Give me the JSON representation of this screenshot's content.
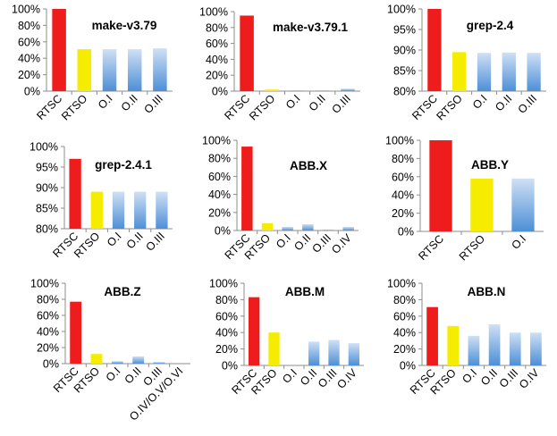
{
  "chart_data": [
    {
      "type": "bar",
      "title": "make-v3.79",
      "categories": [
        "RTSC",
        "RTSO",
        "O.I",
        "O.II",
        "O.III"
      ],
      "values": [
        100,
        51,
        51,
        51,
        52
      ],
      "ylim": [
        0,
        100
      ],
      "yticks": [
        "0%",
        "20%",
        "40%",
        "60%",
        "80%",
        "100%"
      ],
      "grid": false
    },
    {
      "type": "bar",
      "title": "make-v3.79.1",
      "categories": [
        "RTSC",
        "RTSO",
        "O.I",
        "O.II",
        "O.III"
      ],
      "values": [
        95,
        2,
        1,
        1,
        3
      ],
      "ylim": [
        0,
        100
      ],
      "yticks": [
        "0%",
        "20%",
        "40%",
        "60%",
        "80%",
        "100%"
      ],
      "grid": false
    },
    {
      "type": "bar",
      "title": "grep-2.4",
      "categories": [
        "RTSC",
        "RTSO",
        "O.I",
        "O.II",
        "O.III"
      ],
      "values": [
        100,
        89.5,
        89.3,
        89.4,
        89.3
      ],
      "ylim": [
        80,
        100
      ],
      "yticks": [
        "80%",
        "85%",
        "90%",
        "95%",
        "100%"
      ],
      "grid": false
    },
    {
      "type": "bar",
      "title": "grep-2.4.1",
      "categories": [
        "RTSC",
        "RTSO",
        "O.I",
        "O.II",
        "O.III"
      ],
      "values": [
        97,
        89,
        89,
        89,
        89
      ],
      "ylim": [
        80,
        100
      ],
      "yticks": [
        "80%",
        "85%",
        "90%",
        "95%",
        "100%"
      ],
      "grid": false
    },
    {
      "type": "bar",
      "title": "ABB.X",
      "categories": [
        "RTSC",
        "RTSO",
        "O.I",
        "O.II",
        "O.III",
        "O.IV"
      ],
      "values": [
        93,
        8,
        4,
        7,
        1,
        4
      ],
      "ylim": [
        0,
        100
      ],
      "yticks": [
        "0%",
        "20%",
        "40%",
        "60%",
        "80%",
        "100%"
      ],
      "grid": false
    },
    {
      "type": "bar",
      "title": "ABB.Y",
      "categories": [
        "RTSC",
        "RTSO",
        "O.I"
      ],
      "values": [
        100,
        58,
        58
      ],
      "ylim": [
        0,
        100
      ],
      "yticks": [
        "0%",
        "20%",
        "40%",
        "60%",
        "80%",
        "100%"
      ],
      "grid": false
    },
    {
      "type": "bar",
      "title": "ABB.Z",
      "categories": [
        "RTSC",
        "RTSO",
        "O.I",
        "O.II",
        "O.III",
        "O.IV/O.V/O.VI"
      ],
      "values": [
        77,
        12,
        3,
        9,
        2,
        0
      ],
      "ylim": [
        0,
        100
      ],
      "yticks": [
        "0%",
        "20%",
        "40%",
        "60%",
        "80%",
        "100%"
      ],
      "grid": false
    },
    {
      "type": "bar",
      "title": "ABB.M",
      "categories": [
        "RTSC",
        "RTSO",
        "O.I",
        "O.II",
        "O.III",
        "O.IV"
      ],
      "values": [
        83,
        40,
        0,
        29,
        31,
        27
      ],
      "ylim": [
        0,
        100
      ],
      "yticks": [
        "0%",
        "20%",
        "40%",
        "60%",
        "80%",
        "100%"
      ],
      "grid": false
    },
    {
      "type": "bar",
      "title": "ABB.N",
      "categories": [
        "RTSC",
        "RTSO",
        "O.I",
        "O.II",
        "O.III",
        "O.IV"
      ],
      "values": [
        71,
        48,
        36,
        50,
        40,
        40
      ],
      "ylim": [
        0,
        100
      ],
      "yticks": [
        "0%",
        "20%",
        "40%",
        "60%",
        "80%",
        "100%"
      ],
      "grid": false
    }
  ],
  "colors": {
    "rtsc": "#ee1c1c",
    "rtso": "#f5ec00",
    "other_top": "#cfe0f4",
    "other_bottom": "#4d8fd6",
    "axis": "#8c8c8c"
  }
}
